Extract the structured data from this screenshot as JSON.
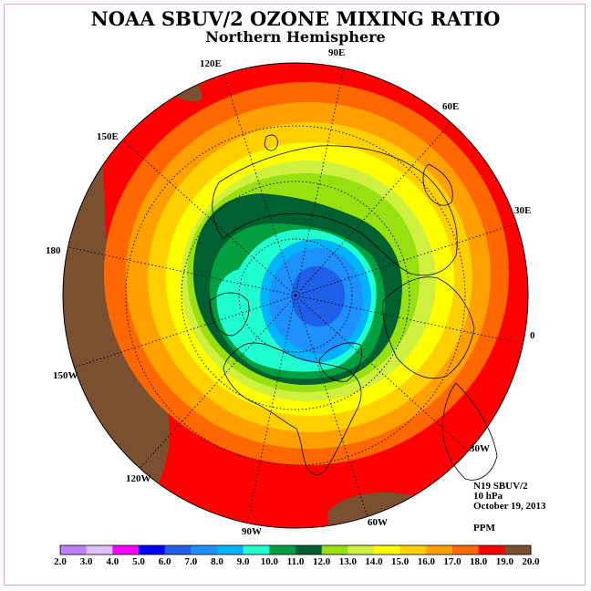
{
  "title": "NOAA SBUV/2 OZONE MIXING RATIO",
  "subtitle": "Northern Hemisphere",
  "info": {
    "instrument": "N19 SBUV/2",
    "level": "10 hPa",
    "date": "October 19, 2013",
    "units": "PPM"
  },
  "longitude_labels": [
    "0",
    "30E",
    "60E",
    "90E",
    "120E",
    "150E",
    "180",
    "150W",
    "120W",
    "90W",
    "60W",
    "30W"
  ],
  "map_data": {
    "projection": "north polar stereographic",
    "parameter": "ozone mixing ratio",
    "contour_colors": {
      "2.0-3.0": "#c080ff",
      "3.0-4.0": "#e0c0ff",
      "4.0-5.0": "#ff00ff",
      "5.0-6.0": "#0000ff",
      "6.0-7.0": "#2060e8",
      "7.0-8.0": "#1e90ff",
      "8.0-9.0": "#00b4ff",
      "9.0-10.0": "#20ffd0",
      "10.0-11.0": "#00a040",
      "11.0-12.0": "#006030",
      "12.0-13.0": "#98e010",
      "13.0-14.0": "#d0f040",
      "14.0-15.0": "#ffff00",
      "15.0-16.0": "#ffd000",
      "16.0-17.0": "#ffa000",
      "17.0-18.0": "#ff6800",
      "18.0-19.0": "#ff0000",
      "19.0-20.0": "#7a5030"
    },
    "pattern_description_levels": {
      "polar_minimum_ppm": 6.0,
      "inner_ring_ppm": 10.0,
      "outer_ring_ppm": 19.0
    }
  },
  "colorbar": {
    "ticks": [
      "2.0",
      "3.0",
      "4.0",
      "5.0",
      "6.0",
      "7.0",
      "8.0",
      "9.0",
      "10.0",
      "11.0",
      "12.0",
      "13.0",
      "14.0",
      "15.0",
      "16.0",
      "17.0",
      "18.0",
      "19.0",
      "20.0"
    ],
    "colors": [
      "#c080ff",
      "#e0c0ff",
      "#ff00ff",
      "#0000ff",
      "#2060e8",
      "#1e90ff",
      "#00b4ff",
      "#20ffd0",
      "#00a040",
      "#006030",
      "#98e010",
      "#d0f040",
      "#ffff00",
      "#ffd000",
      "#ffa000",
      "#ff6800",
      "#ff0000",
      "#7a5030"
    ]
  }
}
